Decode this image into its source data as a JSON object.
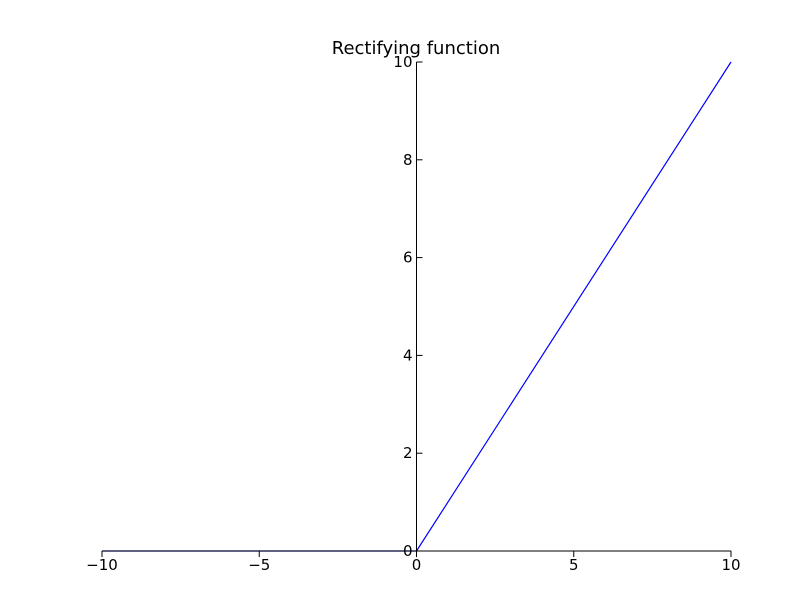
{
  "chart_data": {
    "type": "line",
    "title": "Rectifying function",
    "xlabel": "",
    "ylabel": "",
    "xlim": [
      -10,
      10
    ],
    "ylim": [
      0,
      10
    ],
    "grid": false,
    "x_ticks": [
      -10,
      -5,
      0,
      5,
      10
    ],
    "x_tick_labels": [
      "−10",
      "−5",
      "0",
      "5",
      "10"
    ],
    "y_ticks": [
      0,
      2,
      4,
      6,
      8,
      10
    ],
    "y_tick_labels": [
      "0",
      "2",
      "4",
      "6",
      "8",
      "10"
    ],
    "series": [
      {
        "color": "#0000ff",
        "x": [
          -10,
          0,
          10
        ],
        "y": [
          0,
          0,
          10
        ]
      }
    ]
  }
}
